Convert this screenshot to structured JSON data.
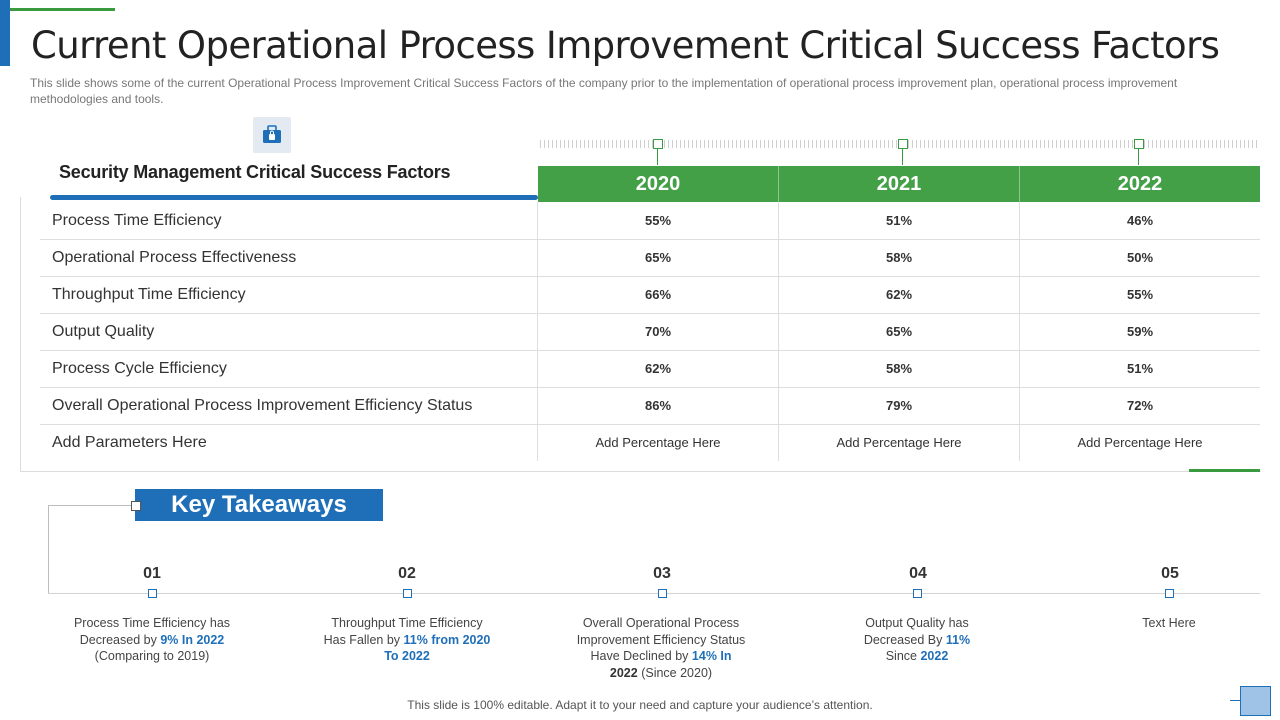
{
  "title": "Current Operational Process Improvement Critical Success Factors",
  "subtitle": "This slide shows some of the current Operational Process Improvement  Critical Success Factors of the company prior to the implementation of operational process improvement  plan, operational process improvement  methodologies and tools.",
  "section_heading": "Security Management Critical Success Factors",
  "section_icon": "lock-icon",
  "years": [
    "2020",
    "2021",
    "2022"
  ],
  "rows": [
    {
      "label": "Process Time Efficiency",
      "values": [
        "55%",
        "51%",
        "46%"
      ]
    },
    {
      "label": "Operational Process Effectiveness",
      "values": [
        "65%",
        "58%",
        "50%"
      ]
    },
    {
      "label": "Throughput  Time Efficiency",
      "values": [
        "66%",
        "62%",
        "55%"
      ]
    },
    {
      "label": "Output Quality",
      "values": [
        "70%",
        "65%",
        "59%"
      ]
    },
    {
      "label": "Process Cycle Efficiency",
      "values": [
        "62%",
        "58%",
        "51%"
      ]
    },
    {
      "label": "Overall Operational Process Improvement  Efficiency Status",
      "values": [
        "86%",
        "79%",
        "72%"
      ]
    },
    {
      "label": "Add Parameters Here",
      "values": [
        "Add Percentage Here",
        "Add Percentage Here",
        "Add Percentage Here"
      ]
    }
  ],
  "key_takeaways": {
    "heading": "Key Takeaways",
    "items": [
      {
        "number": "01",
        "lines": [
          [
            {
              "t": "Process Time Efficiency has"
            }
          ],
          [
            {
              "t": "Decreased  by "
            },
            {
              "t": "9%  In 2022",
              "s": "hl"
            }
          ],
          [
            {
              "t": "(Comparing  to 2019)"
            }
          ]
        ]
      },
      {
        "number": "02",
        "lines": [
          [
            {
              "t": "Throughput  Time  Efficiency"
            }
          ],
          [
            {
              "t": "Has Fallen by "
            },
            {
              "t": "11%  from 2020",
              "s": "hl"
            }
          ],
          [
            {
              "t": "To 2022",
              "s": "hl"
            }
          ]
        ]
      },
      {
        "number": "03",
        "lines": [
          [
            {
              "t": "Overall  Operational  Process"
            }
          ],
          [
            {
              "t": "Improvement  Efficiency Status"
            }
          ],
          [
            {
              "t": "Have  Declined by "
            },
            {
              "t": "14%  In",
              "s": "hl"
            }
          ],
          [
            {
              "t": "2022",
              "s": "bd"
            },
            {
              "t": " (Since 2020)"
            }
          ]
        ]
      },
      {
        "number": "04",
        "lines": [
          [
            {
              "t": "Output Quality has"
            }
          ],
          [
            {
              "t": "Decreased  By "
            },
            {
              "t": "11%",
              "s": "hl"
            }
          ],
          [
            {
              "t": "Since "
            },
            {
              "t": "2022",
              "s": "hl"
            }
          ]
        ]
      },
      {
        "number": "05",
        "lines": [
          [
            {
              "t": "Text Here"
            }
          ]
        ]
      }
    ]
  },
  "footer": "This slide is 100% editable. Adapt it to your need and capture your audience’s attention.",
  "colors": {
    "accent_blue": "#1f6fb8",
    "accent_green": "#43a047"
  }
}
